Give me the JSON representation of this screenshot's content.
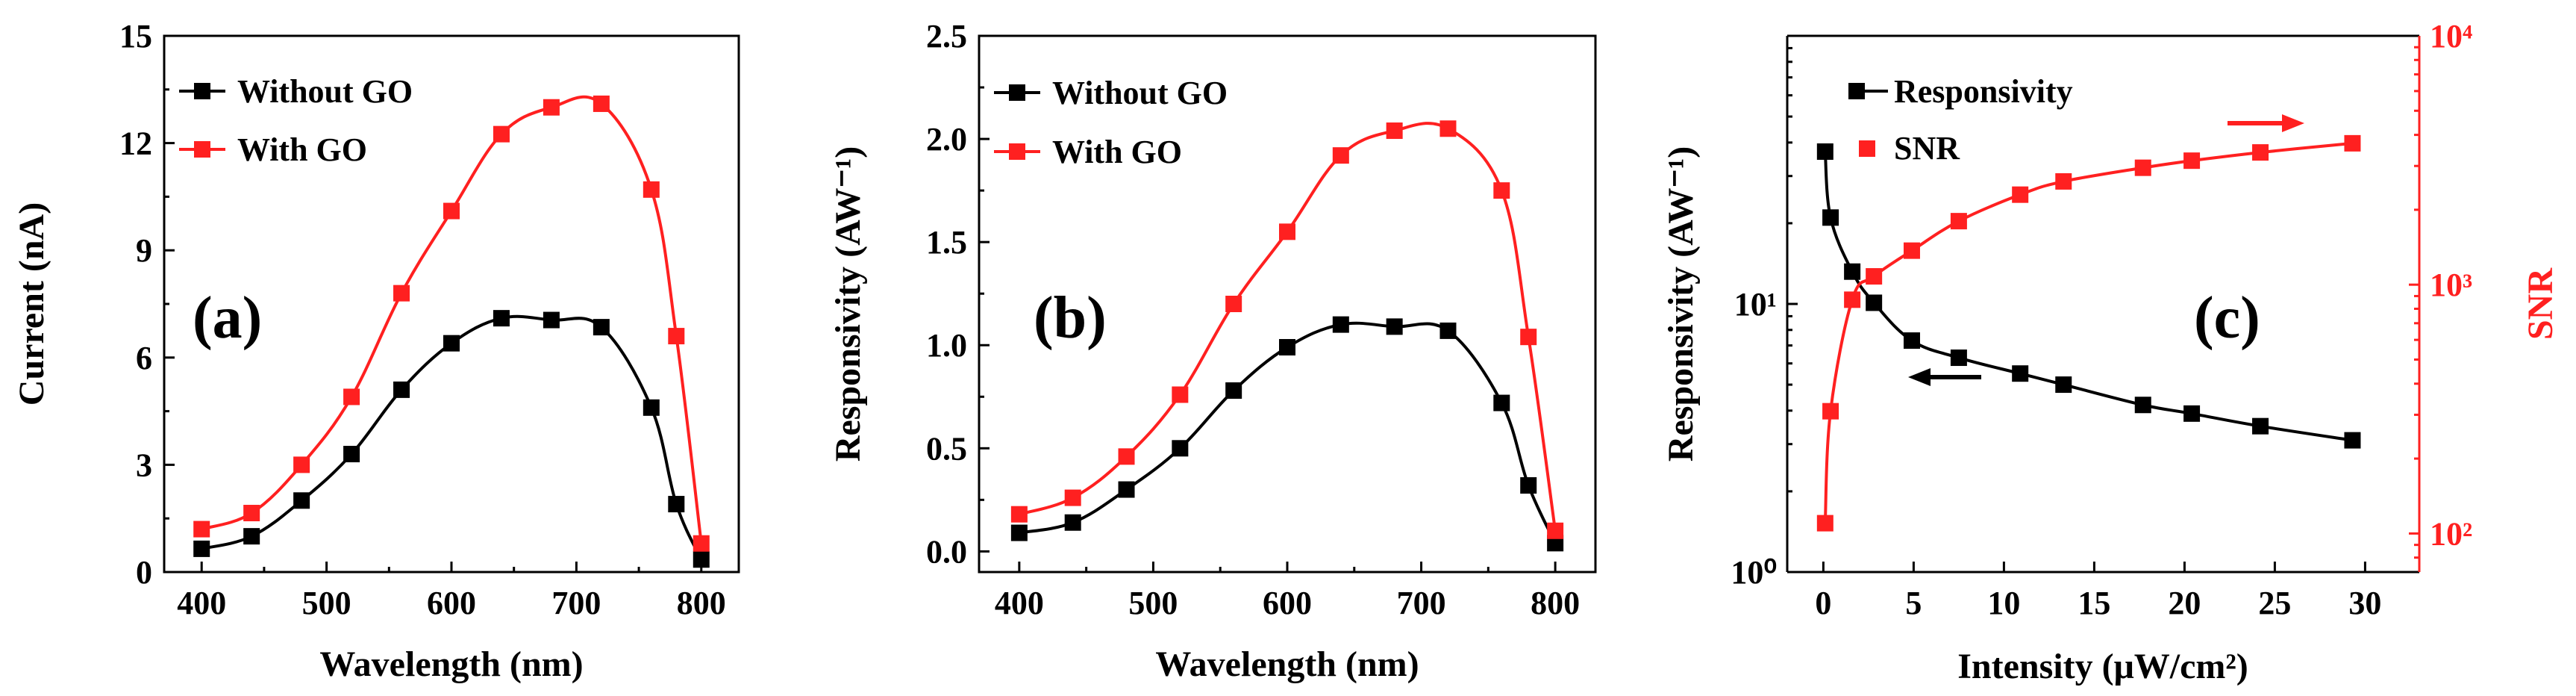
{
  "colors": {
    "without": "#000000",
    "with": "#ff2020"
  },
  "chart_data": [
    {
      "type": "line",
      "panel_label": "(a)",
      "xlabel": "Wavelength (nm)",
      "ylabel": "Current (nA)",
      "xlim": [
        370,
        830
      ],
      "ylim": [
        0,
        15
      ],
      "x_ticks": [
        400,
        500,
        600,
        700,
        800
      ],
      "x_tick_labels": [
        "400",
        "500",
        "600",
        "700",
        "800"
      ],
      "y_ticks": [
        0,
        3,
        6,
        9,
        12,
        15
      ],
      "y_tick_labels": [
        "0",
        "3",
        "6",
        "9",
        "12",
        "15"
      ],
      "legend": [
        "Without GO",
        "With GO"
      ],
      "x": [
        400,
        440,
        480,
        520,
        560,
        600,
        640,
        680,
        720,
        760,
        780,
        800
      ],
      "series": [
        {
          "name": "Without GO",
          "color": "#000000",
          "values": [
            0.65,
            1.0,
            2.0,
            3.3,
            5.1,
            6.4,
            7.1,
            7.05,
            6.85,
            4.6,
            1.9,
            0.35
          ]
        },
        {
          "name": "With GO",
          "color": "#ff2020",
          "values": [
            1.2,
            1.65,
            3.0,
            4.9,
            7.8,
            10.1,
            12.25,
            13.0,
            13.1,
            10.7,
            6.6,
            0.8
          ]
        }
      ]
    },
    {
      "type": "line",
      "panel_label": "(b)",
      "xlabel": "Wavelength (nm)",
      "ylabel": "Responsivity (AW⁻¹)",
      "xlim": [
        370,
        830
      ],
      "ylim": [
        -0.1,
        2.5
      ],
      "x_ticks": [
        400,
        500,
        600,
        700,
        800
      ],
      "x_tick_labels": [
        "400",
        "500",
        "600",
        "700",
        "800"
      ],
      "y_ticks": [
        0.0,
        0.5,
        1.0,
        1.5,
        2.0,
        2.5
      ],
      "y_tick_labels": [
        "0.0",
        "0.5",
        "1.0",
        "1.5",
        "2.0",
        "2.5"
      ],
      "legend": [
        "Without GO",
        "With GO"
      ],
      "x": [
        400,
        440,
        480,
        520,
        560,
        600,
        640,
        680,
        720,
        760,
        780,
        800
      ],
      "series": [
        {
          "name": "Without GO",
          "color": "#000000",
          "values": [
            0.09,
            0.14,
            0.3,
            0.5,
            0.78,
            0.99,
            1.1,
            1.09,
            1.07,
            0.72,
            0.32,
            0.04
          ]
        },
        {
          "name": "With GO",
          "color": "#ff2020",
          "values": [
            0.18,
            0.26,
            0.46,
            0.76,
            1.2,
            1.55,
            1.92,
            2.04,
            2.05,
            1.75,
            1.04,
            0.1
          ]
        }
      ]
    },
    {
      "type": "line",
      "panel_label": "(c)",
      "xlabel": "Intensity (μW/cm²)",
      "ylabel": "Responsivity  (AW⁻¹)",
      "y2label": "SNR",
      "xlim": [
        -2,
        33
      ],
      "ylim_log": [
        1,
        100
      ],
      "y2lim_log": [
        70,
        10000
      ],
      "x_ticks": [
        0,
        5,
        10,
        15,
        20,
        25,
        30
      ],
      "x_tick_labels": [
        "0",
        "5",
        "10",
        "15",
        "20",
        "25",
        "30"
      ],
      "y_ticks": [
        1,
        10
      ],
      "y_tick_labels": [
        "10⁰",
        "10¹"
      ],
      "y2_ticks": [
        100,
        1000,
        10000
      ],
      "y2_tick_labels": [
        "10²",
        "10³",
        "10⁴"
      ],
      "legend": [
        "Responsivity",
        "SNR"
      ],
      "x": [
        0.1,
        0.4,
        1.6,
        2.8,
        4.9,
        7.5,
        10.9,
        13.3,
        17.7,
        20.4,
        24.2,
        29.3
      ],
      "series": [
        {
          "name": "Responsivity",
          "axis": "left",
          "color": "#000000",
          "values": [
            37,
            21,
            13.2,
            10.1,
            7.3,
            6.3,
            5.5,
            5.0,
            4.2,
            3.9,
            3.5,
            3.1
          ]
        },
        {
          "name": "SNR",
          "axis": "right",
          "color": "#ff2020",
          "values": [
            110,
            310,
            870,
            1080,
            1370,
            1800,
            2300,
            2600,
            2950,
            3150,
            3400,
            3700
          ]
        }
      ]
    }
  ]
}
